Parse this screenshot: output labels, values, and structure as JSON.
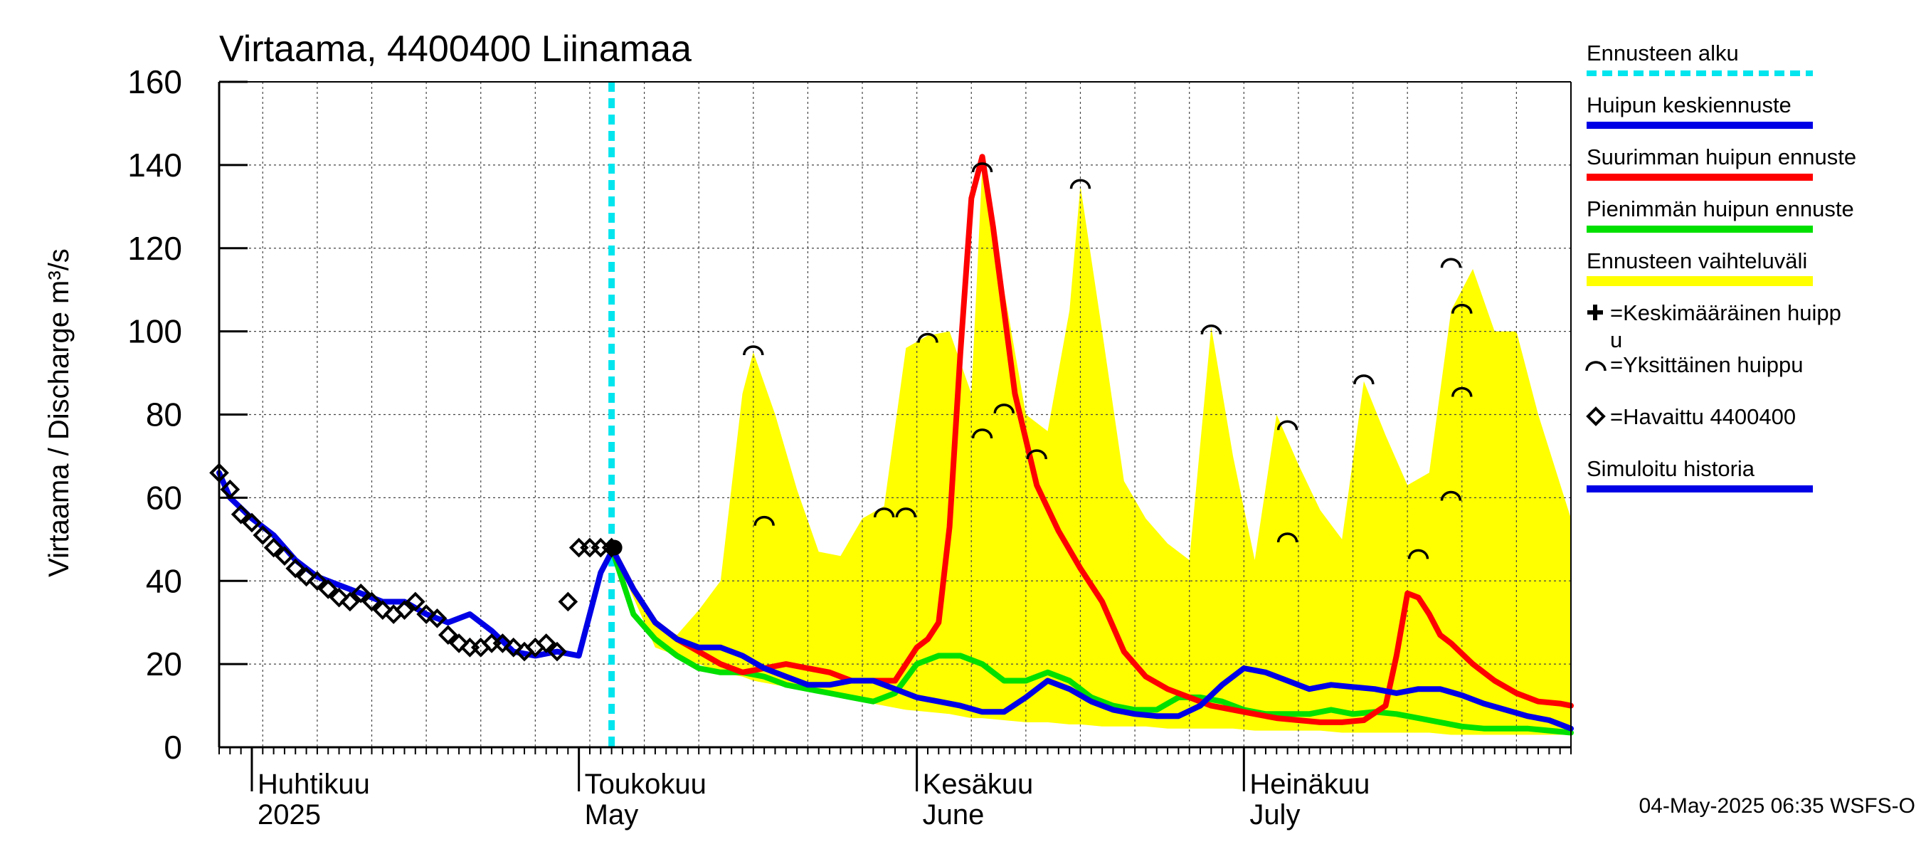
{
  "chart_data": {
    "type": "line",
    "title": "Virtaama, 4400400 Liinamaa",
    "ylabel": "Virtaama / Discharge   m³/s",
    "ylim": [
      0,
      160
    ],
    "yticks": [
      0,
      20,
      40,
      60,
      80,
      100,
      120,
      140,
      160
    ],
    "xlim": [
      "2025-03-29",
      "2025-07-31"
    ],
    "grid": true,
    "month_labels": [
      {
        "date": "2025-04-01",
        "line1": "Huhtikuu",
        "line2": "2025"
      },
      {
        "date": "2025-05-01",
        "line1": "Toukokuu",
        "line2": "May"
      },
      {
        "date": "2025-06-01",
        "line1": "Kesäkuu",
        "line2": "June"
      },
      {
        "date": "2025-07-01",
        "line1": "Heinäkuu",
        "line2": "July"
      }
    ],
    "forecast_start": "2025-05-04",
    "footer": "04-May-2025 06:35 WSFS-O",
    "colors": {
      "forecast_start": "#00e5ee",
      "mean_forecast": "#0000e6",
      "max_forecast": "#ff0000",
      "min_forecast": "#00e000",
      "range": "#ffff00",
      "simulated": "#0000e6",
      "observed": "#000000"
    },
    "legend": [
      {
        "label": "Ennusteen alku",
        "style": "dashed",
        "color": "#00e5ee"
      },
      {
        "label": "Huipun keskiennuste",
        "style": "line",
        "color": "#0000e6"
      },
      {
        "label": "Suurimman huipun ennuste",
        "style": "line",
        "color": "#ff0000"
      },
      {
        "label": "Pienimmän huipun ennuste",
        "style": "line",
        "color": "#00e000"
      },
      {
        "label": "Ennusteen vaihteluväli",
        "style": "band",
        "color": "#ffff00"
      },
      {
        "label": "=Keskimääräinen huipp",
        "label2": "u",
        "style": "plus",
        "color": "#000000"
      },
      {
        "label": "=Yksittäinen huippu",
        "style": "arc",
        "color": "#000000"
      },
      {
        "label": "=Havaittu 4400400",
        "style": "diamond",
        "color": "#000000"
      },
      {
        "label": "Simuloitu historia",
        "style": "line",
        "color": "#0000e6"
      }
    ],
    "series": [
      {
        "name": "Simuloitu historia",
        "x": [
          "2025-03-29",
          "2025-03-30",
          "2025-04-01",
          "2025-04-03",
          "2025-04-05",
          "2025-04-07",
          "2025-04-09",
          "2025-04-11",
          "2025-04-13",
          "2025-04-15",
          "2025-04-17",
          "2025-04-19",
          "2025-04-21",
          "2025-04-23",
          "2025-04-25",
          "2025-04-27",
          "2025-04-29",
          "2025-05-01",
          "2025-05-03",
          "2025-05-04"
        ],
        "y": [
          66,
          60,
          55,
          51,
          45,
          41,
          39,
          37,
          35,
          35,
          32,
          30,
          32,
          28,
          23,
          22,
          23,
          22,
          42,
          47
        ]
      },
      {
        "name": "Havaittu 4400400",
        "x": [
          "2025-03-29",
          "2025-03-30",
          "2025-03-31",
          "2025-04-01",
          "2025-04-02",
          "2025-04-03",
          "2025-04-04",
          "2025-04-05",
          "2025-04-06",
          "2025-04-07",
          "2025-04-08",
          "2025-04-09",
          "2025-04-10",
          "2025-04-11",
          "2025-04-12",
          "2025-04-13",
          "2025-04-14",
          "2025-04-15",
          "2025-04-16",
          "2025-04-17",
          "2025-04-18",
          "2025-04-19",
          "2025-04-20",
          "2025-04-21",
          "2025-04-22",
          "2025-04-23",
          "2025-04-24",
          "2025-04-25",
          "2025-04-26",
          "2025-04-27",
          "2025-04-28",
          "2025-04-29",
          "2025-04-30",
          "2025-05-01",
          "2025-05-02",
          "2025-05-03",
          "2025-05-04"
        ],
        "y": [
          66,
          62,
          56,
          54,
          51,
          48,
          46,
          43,
          41,
          40,
          38,
          36,
          35,
          37,
          35,
          33,
          32,
          33,
          35,
          32,
          31,
          27,
          25,
          24,
          24,
          25,
          25,
          24,
          23,
          24,
          25,
          23,
          35,
          48,
          48,
          48,
          48
        ]
      },
      {
        "name": "Huipun keskiennuste",
        "x": [
          "2025-05-04",
          "2025-05-06",
          "2025-05-08",
          "2025-05-10",
          "2025-05-12",
          "2025-05-14",
          "2025-05-16",
          "2025-05-18",
          "2025-05-20",
          "2025-05-22",
          "2025-05-24",
          "2025-05-26",
          "2025-05-28",
          "2025-05-30",
          "2025-06-01",
          "2025-06-03",
          "2025-06-05",
          "2025-06-07",
          "2025-06-09",
          "2025-06-11",
          "2025-06-13",
          "2025-06-15",
          "2025-06-17",
          "2025-06-19",
          "2025-06-21",
          "2025-06-23",
          "2025-06-25",
          "2025-06-27",
          "2025-06-29",
          "2025-07-01",
          "2025-07-03",
          "2025-07-05",
          "2025-07-07",
          "2025-07-09",
          "2025-07-11",
          "2025-07-13",
          "2025-07-15",
          "2025-07-17",
          "2025-07-19",
          "2025-07-21",
          "2025-07-23",
          "2025-07-25",
          "2025-07-27",
          "2025-07-29",
          "2025-07-31"
        ],
        "y": [
          48,
          38,
          30,
          26,
          24,
          24,
          22,
          19,
          17,
          15,
          15,
          16,
          16,
          14,
          12,
          11,
          10,
          8.5,
          8.5,
          12,
          16,
          14,
          11,
          9,
          8,
          7.5,
          7.5,
          10,
          15,
          19,
          18,
          16,
          14,
          15,
          14.5,
          14,
          13,
          14,
          14,
          12.5,
          10.5,
          9,
          7.5,
          6.5,
          4.5
        ]
      },
      {
        "name": "Suurimman huipun ennuste",
        "x": [
          "2025-05-04",
          "2025-05-06",
          "2025-05-08",
          "2025-05-10",
          "2025-05-12",
          "2025-05-14",
          "2025-05-16",
          "2025-05-18",
          "2025-05-20",
          "2025-05-22",
          "2025-05-24",
          "2025-05-26",
          "2025-05-28",
          "2025-05-30",
          "2025-06-01",
          "2025-06-02",
          "2025-06-03",
          "2025-06-04",
          "2025-06-05",
          "2025-06-06",
          "2025-06-07",
          "2025-06-08",
          "2025-06-09",
          "2025-06-10",
          "2025-06-12",
          "2025-06-14",
          "2025-06-16",
          "2025-06-18",
          "2025-06-20",
          "2025-06-22",
          "2025-06-24",
          "2025-06-26",
          "2025-06-28",
          "2025-06-30",
          "2025-07-02",
          "2025-07-04",
          "2025-07-06",
          "2025-07-08",
          "2025-07-10",
          "2025-07-12",
          "2025-07-14",
          "2025-07-15",
          "2025-07-16",
          "2025-07-17",
          "2025-07-18",
          "2025-07-19",
          "2025-07-20",
          "2025-07-22",
          "2025-07-24",
          "2025-07-26",
          "2025-07-28",
          "2025-07-30",
          "2025-07-31"
        ],
        "y": [
          48,
          38,
          30,
          26,
          23,
          20,
          18,
          19,
          20,
          19,
          18,
          16,
          16,
          16,
          24,
          26,
          30,
          53,
          95,
          132,
          142,
          125,
          105,
          85,
          63,
          52,
          43,
          35,
          23,
          17,
          14,
          12,
          10,
          9,
          8,
          7,
          6.5,
          6,
          6,
          6.5,
          10,
          22,
          37,
          36,
          32,
          27,
          25,
          20,
          16,
          13,
          11,
          10.5,
          10
        ]
      },
      {
        "name": "Pienimmän huipun ennuste",
        "x": [
          "2025-05-04",
          "2025-05-06",
          "2025-05-08",
          "2025-05-10",
          "2025-05-12",
          "2025-05-14",
          "2025-05-16",
          "2025-05-18",
          "2025-05-20",
          "2025-05-22",
          "2025-05-24",
          "2025-05-26",
          "2025-05-28",
          "2025-05-30",
          "2025-06-01",
          "2025-06-03",
          "2025-06-05",
          "2025-06-07",
          "2025-06-09",
          "2025-06-11",
          "2025-06-13",
          "2025-06-15",
          "2025-06-17",
          "2025-06-19",
          "2025-06-21",
          "2025-06-23",
          "2025-06-25",
          "2025-06-27",
          "2025-06-29",
          "2025-07-01",
          "2025-07-03",
          "2025-07-05",
          "2025-07-07",
          "2025-07-09",
          "2025-07-11",
          "2025-07-13",
          "2025-07-15",
          "2025-07-17",
          "2025-07-19",
          "2025-07-21",
          "2025-07-23",
          "2025-07-25",
          "2025-07-27",
          "2025-07-29",
          "2025-07-31"
        ],
        "y": [
          48,
          32,
          26,
          22,
          19,
          18,
          18,
          17,
          15,
          14,
          13,
          12,
          11,
          13,
          20,
          22,
          22,
          20,
          16,
          16,
          18,
          16,
          12,
          10,
          9,
          9,
          12,
          12,
          11,
          9,
          8,
          8,
          8,
          9,
          8,
          8.5,
          8,
          7,
          6,
          5,
          4.5,
          4.5,
          4.5,
          4,
          3.5
        ]
      },
      {
        "name": "Ennusteen vaihteluväli",
        "x": [
          "2025-05-04",
          "2025-05-08",
          "2025-05-10",
          "2025-05-12",
          "2025-05-14",
          "2025-05-16",
          "2025-05-17",
          "2025-05-19",
          "2025-05-21",
          "2025-05-23",
          "2025-05-25",
          "2025-05-27",
          "2025-05-29",
          "2025-05-31",
          "2025-06-02",
          "2025-06-04",
          "2025-06-06",
          "2025-06-07",
          "2025-06-09",
          "2025-06-11",
          "2025-06-13",
          "2025-06-15",
          "2025-06-16",
          "2025-06-18",
          "2025-06-20",
          "2025-06-22",
          "2025-06-24",
          "2025-06-26",
          "2025-06-28",
          "2025-06-30",
          "2025-07-02",
          "2025-07-04",
          "2025-07-06",
          "2025-07-08",
          "2025-07-10",
          "2025-07-12",
          "2025-07-14",
          "2025-07-16",
          "2025-07-18",
          "2025-07-20",
          "2025-07-22",
          "2025-07-24",
          "2025-07-26",
          "2025-07-28",
          "2025-07-31"
        ],
        "y_upper": [
          48,
          30,
          27,
          33,
          40,
          85,
          95,
          80,
          62,
          47,
          46,
          55,
          58,
          96,
          99,
          100,
          85,
          140,
          110,
          80,
          76,
          105,
          135,
          100,
          64,
          55,
          49,
          45,
          101,
          70,
          45,
          80,
          68,
          57,
          50,
          88,
          75,
          63,
          66,
          105,
          115,
          100,
          100,
          80,
          55
        ],
        "y_lower": [
          48,
          24,
          22,
          20,
          18,
          17,
          16,
          15,
          14,
          13,
          12,
          11,
          10,
          9,
          8.5,
          8,
          7,
          7,
          6.5,
          6,
          6,
          5.5,
          5.5,
          5,
          5,
          5,
          4.5,
          4.5,
          4.5,
          4.5,
          4,
          4,
          4,
          4,
          3.5,
          3.5,
          3.5,
          3.5,
          3.5,
          3,
          3,
          3,
          3,
          3,
          3
        ]
      }
    ],
    "peak_markers": [
      {
        "date": "2025-05-17",
        "value": 96
      },
      {
        "date": "2025-05-18",
        "value": 55
      },
      {
        "date": "2025-05-29",
        "value": 57
      },
      {
        "date": "2025-05-31",
        "value": 57
      },
      {
        "date": "2025-06-02",
        "value": 99
      },
      {
        "date": "2025-06-07",
        "value": 140
      },
      {
        "date": "2025-06-07",
        "value": 76
      },
      {
        "date": "2025-06-09",
        "value": 82
      },
      {
        "date": "2025-06-12",
        "value": 71
      },
      {
        "date": "2025-06-16",
        "value": 136
      },
      {
        "date": "2025-06-28",
        "value": 101
      },
      {
        "date": "2025-07-05",
        "value": 78
      },
      {
        "date": "2025-07-05",
        "value": 51
      },
      {
        "date": "2025-07-12",
        "value": 89
      },
      {
        "date": "2025-07-17",
        "value": 47
      },
      {
        "date": "2025-07-20",
        "value": 117
      },
      {
        "date": "2025-07-21",
        "value": 106
      },
      {
        "date": "2025-07-21",
        "value": 86
      },
      {
        "date": "2025-07-20",
        "value": 61
      }
    ]
  }
}
